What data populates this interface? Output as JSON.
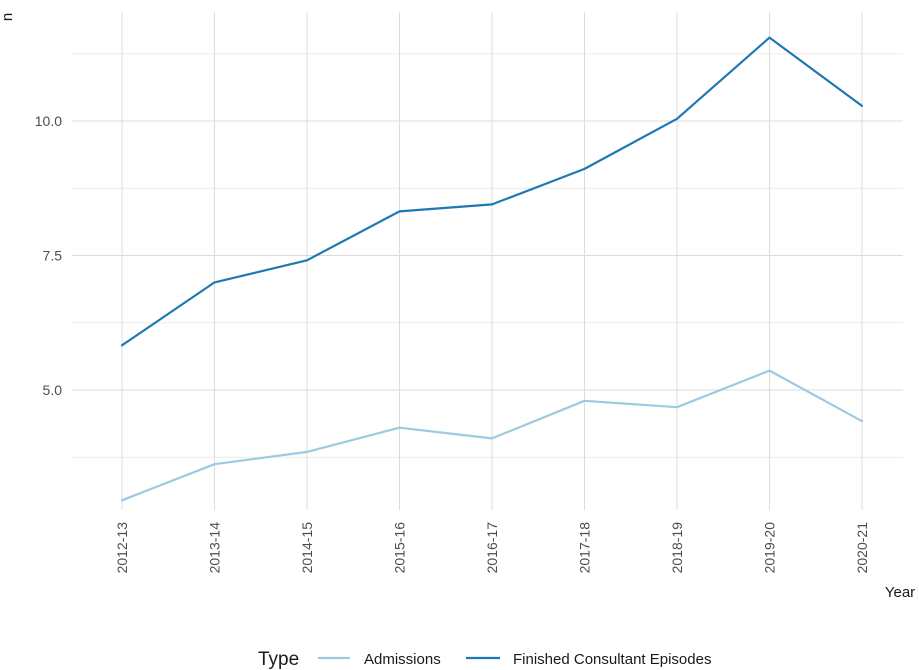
{
  "chart_data": {
    "type": "line",
    "title": "",
    "xlabel": "Year",
    "ylabel": "n",
    "categories": [
      "2012-13",
      "2013-14",
      "2014-15",
      "2015-16",
      "2016-17",
      "2017-18",
      "2018-19",
      "2019-20",
      "2020-21"
    ],
    "ylim": [
      2.3,
      12.0
    ],
    "y_ticks": [
      5.0,
      7.5,
      10.0
    ],
    "y_tick_labels": [
      "5.0",
      "7.5",
      "10.0"
    ],
    "grid": true,
    "legend": {
      "title": "Type",
      "position": "bottom"
    },
    "series": [
      {
        "name": "Admissions",
        "color": "#9ecae1",
        "values": [
          2.95,
          3.62,
          3.85,
          4.3,
          4.1,
          4.8,
          4.68,
          5.36,
          4.42
        ]
      },
      {
        "name": "Finished Consultant Episodes",
        "color": "#1f78b4",
        "values": [
          5.83,
          7.0,
          7.41,
          8.32,
          8.45,
          9.11,
          10.04,
          11.55,
          10.28
        ]
      }
    ]
  }
}
